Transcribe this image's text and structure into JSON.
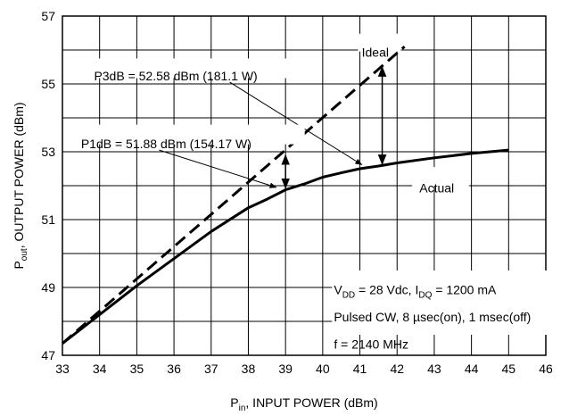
{
  "chart_data": {
    "type": "line",
    "xlabel": {
      "main": "P",
      "sub": "in",
      "rest": ", INPUT POWER (dBm)"
    },
    "ylabel": {
      "main": "P",
      "sub": "out",
      "rest": ", OUTPUT POWER (dBm)"
    },
    "xlim": [
      33,
      46
    ],
    "ylim": [
      47,
      57
    ],
    "xticks": [
      33,
      34,
      35,
      36,
      37,
      38,
      39,
      40,
      41,
      42,
      43,
      44,
      45,
      46
    ],
    "yticks": [
      47,
      49,
      51,
      53,
      55,
      57
    ],
    "grid": true,
    "series": [
      {
        "name": "Ideal",
        "style": "dashed",
        "x": [
          33,
          42.2
        ],
        "y": [
          47.35,
          56.1
        ]
      },
      {
        "name": "Actual",
        "style": "solid",
        "x": [
          33,
          34,
          35,
          36,
          37,
          38,
          38.5,
          39,
          39.5,
          40,
          40.5,
          41,
          41.5,
          42,
          43,
          44,
          45
        ],
        "y": [
          47.35,
          48.2,
          49.05,
          49.85,
          50.65,
          51.35,
          51.6,
          51.88,
          52.05,
          52.25,
          52.38,
          52.5,
          52.58,
          52.67,
          52.82,
          52.95,
          53.05
        ]
      }
    ],
    "annotations": {
      "ideal_label": "Ideal",
      "actual_label": "Actual",
      "p3db": "P3dB = 52.58 dBm (181.1 W)",
      "p1db": "P1dB = 51.88 dBm (154.17 W)",
      "cond_line1": {
        "v": "V",
        "v_sub": "DD",
        "v_rest": " = 28 Vdc, I",
        "i_sub": "DQ",
        "i_rest": " = 1200 mA"
      },
      "cond_line2": "Pulsed CW, 8 µsec(on), 1 msec(off)",
      "cond_line3": "f = 2140 MHz"
    },
    "markers": {
      "p1db": {
        "x": 39,
        "y_low": 51.88,
        "y_high": 52.95
      },
      "p3db": {
        "x": 41.6,
        "y_low": 52.58,
        "y_high": 55.55
      }
    }
  }
}
